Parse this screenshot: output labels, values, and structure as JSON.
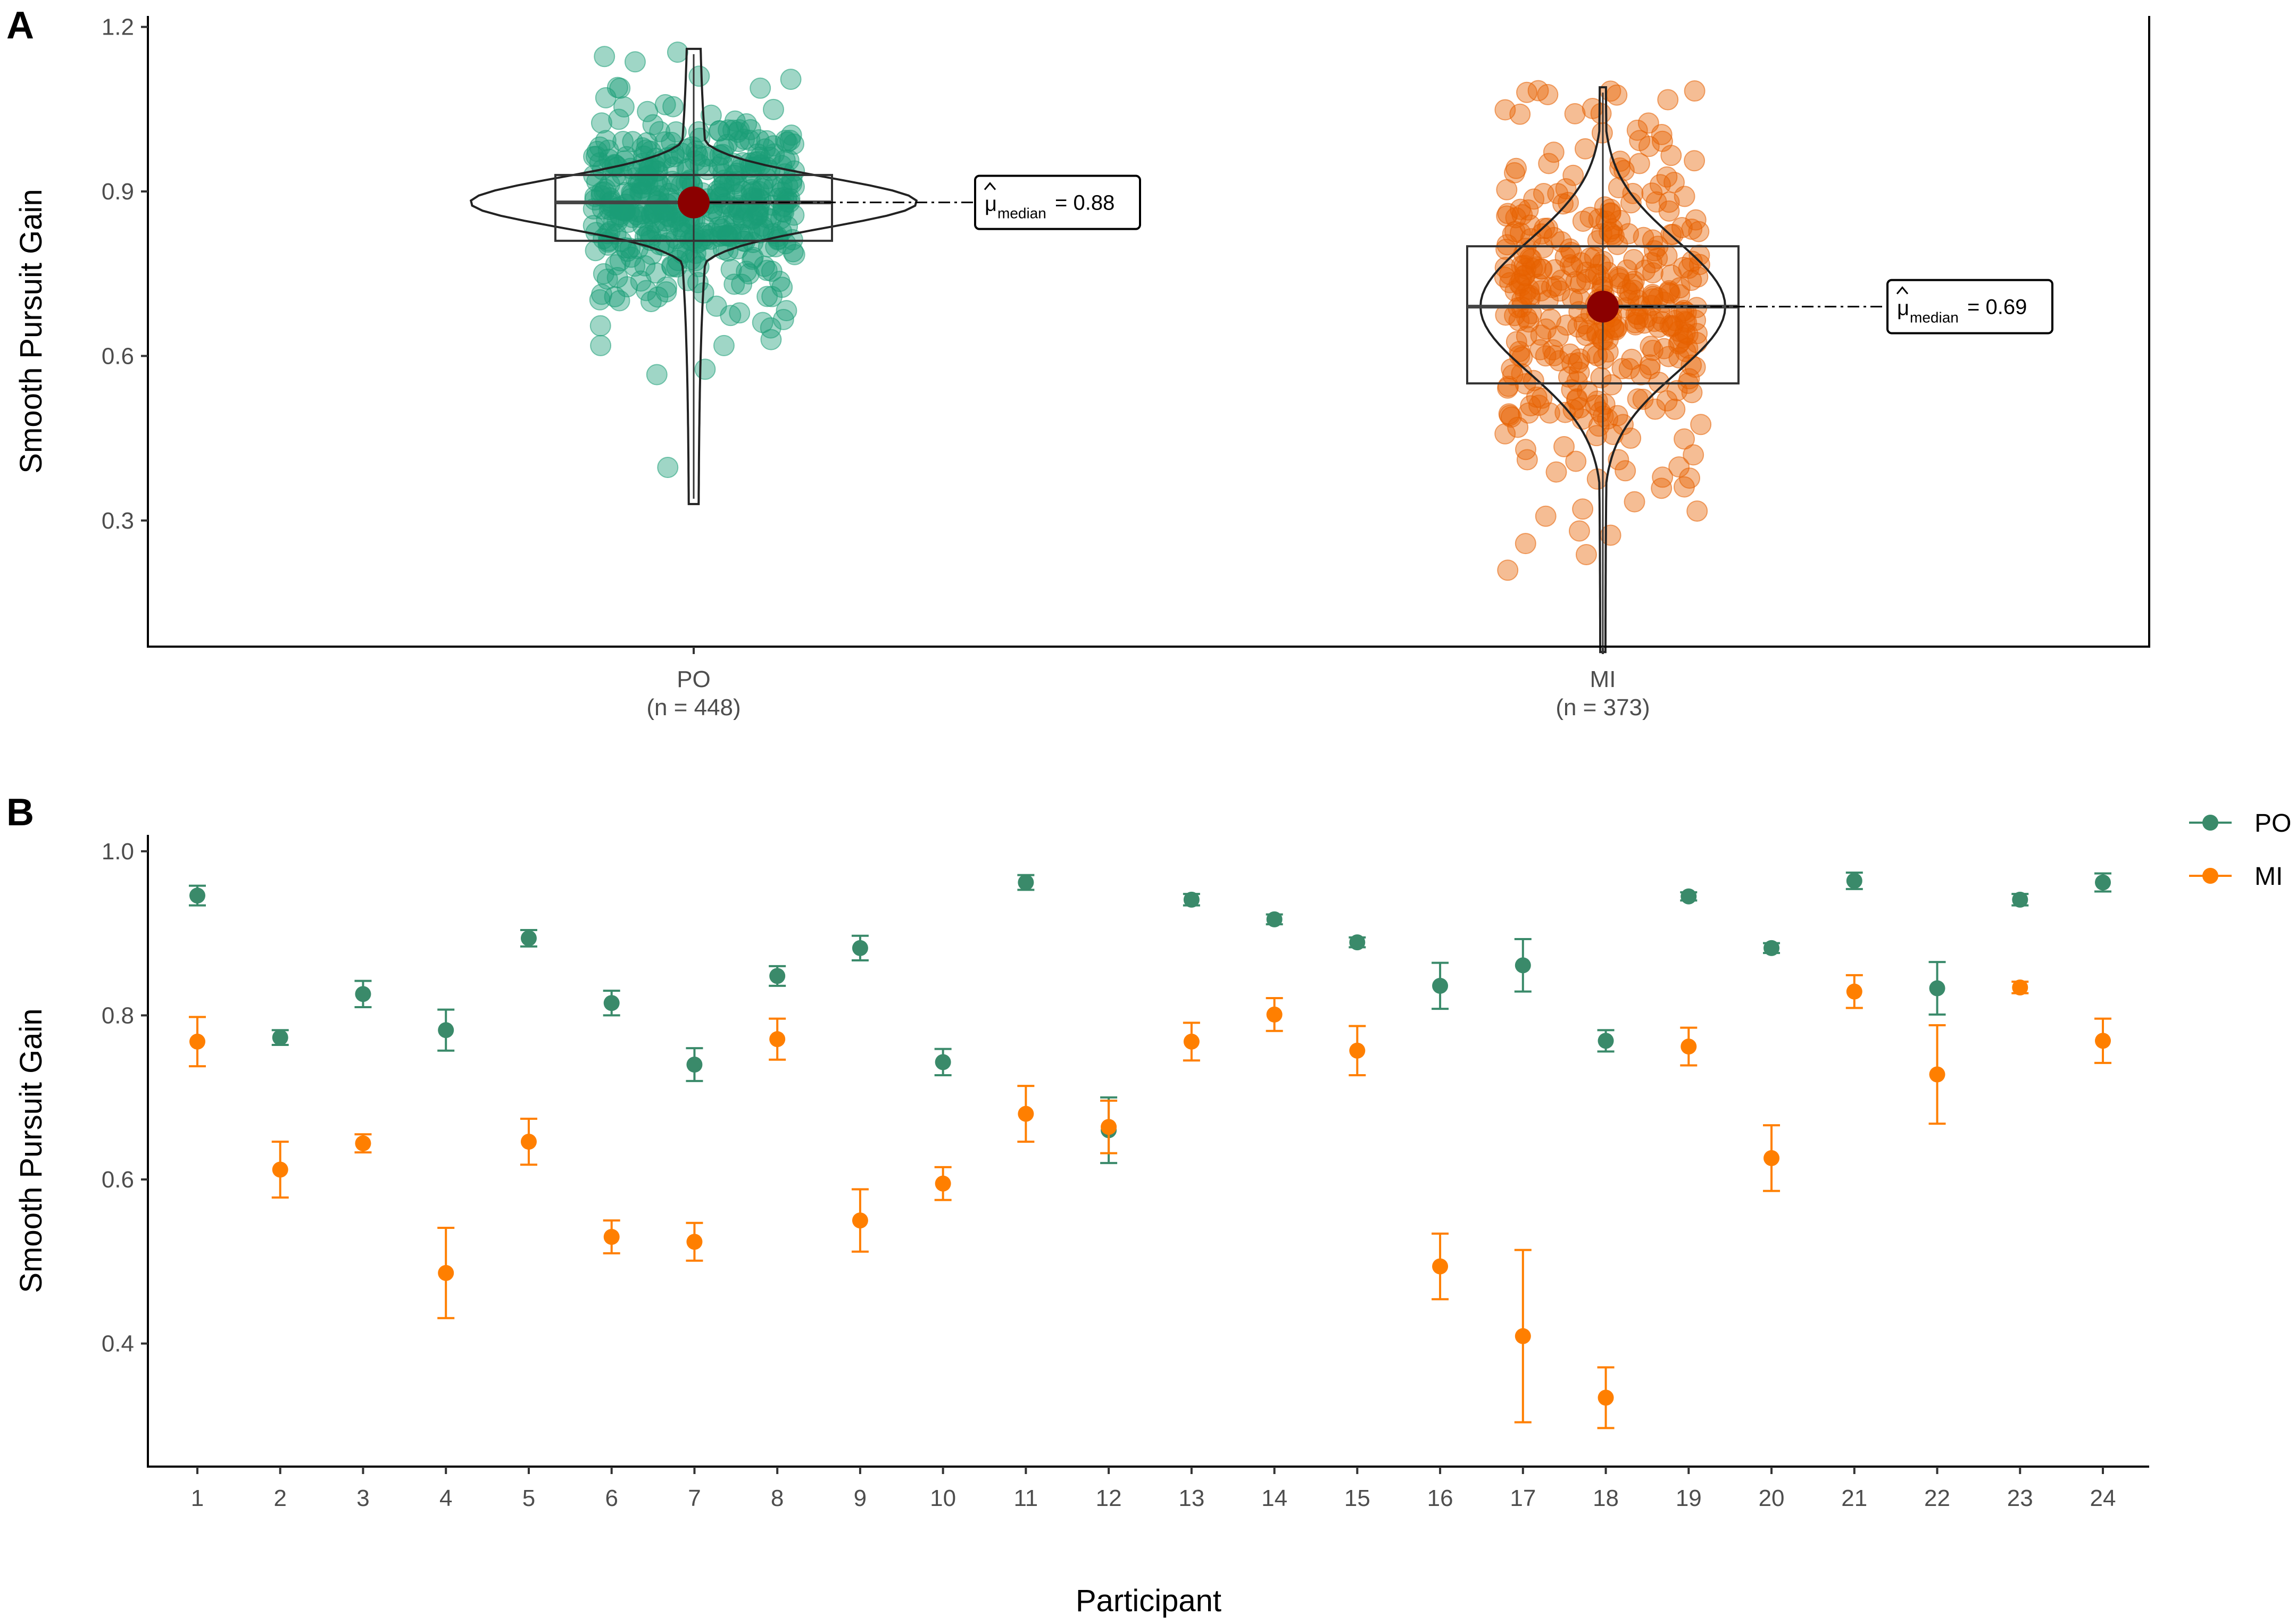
{
  "chart_data": [
    {
      "panel": "A",
      "type": "violin",
      "ylabel": "Smooth Pursuit Gain",
      "ylim": [
        0.07,
        1.22
      ],
      "yticks": [
        0.3,
        0.6,
        0.9,
        1.2
      ],
      "ytick_labels": [
        "0.3",
        "0.6",
        "0.9",
        "1.2"
      ],
      "median_symbol": "μ",
      "median_subscript": "median",
      "groups": [
        {
          "name": "PO",
          "n_label": "(n = 448)",
          "color": "#1b9e77",
          "median": 0.88,
          "median_label": "= 0.88",
          "q1": 0.81,
          "q3": 0.93,
          "min": 0.33,
          "max": 1.16
        },
        {
          "name": "MI",
          "n_label": "(n = 373)",
          "color": "#e66101",
          "median": 0.69,
          "median_label": "= 0.69",
          "q1": 0.55,
          "q3": 0.8,
          "min": 0.06,
          "max": 1.09
        }
      ]
    },
    {
      "panel": "B",
      "type": "scatter",
      "xlabel": "Participant",
      "ylabel": "Smooth Pursuit Gain",
      "ylim": [
        0.25,
        1.02
      ],
      "yticks": [
        0.4,
        0.6,
        0.8,
        1.0
      ],
      "ytick_labels": [
        "0.4",
        "0.6",
        "0.8",
        "1.0"
      ],
      "categories": [
        "1",
        "2",
        "3",
        "4",
        "5",
        "6",
        "7",
        "8",
        "9",
        "10",
        "11",
        "12",
        "13",
        "14",
        "15",
        "16",
        "17",
        "18",
        "19",
        "20",
        "21",
        "22",
        "23",
        "24"
      ],
      "series": [
        {
          "name": "PO",
          "color": "#3a8a6a",
          "values": [
            0.946,
            0.773,
            0.826,
            0.782,
            0.894,
            0.815,
            0.74,
            0.848,
            0.882,
            0.743,
            0.962,
            0.66,
            0.941,
            0.917,
            0.889,
            0.836,
            0.861,
            0.769,
            0.945,
            0.882,
            0.964,
            0.833,
            0.941,
            0.962
          ],
          "err": [
            0.012,
            0.009,
            0.016,
            0.025,
            0.01,
            0.015,
            0.02,
            0.012,
            0.015,
            0.016,
            0.009,
            0.04,
            0.007,
            0.006,
            0.006,
            0.028,
            0.032,
            0.013,
            0.005,
            0.006,
            0.01,
            0.032,
            0.007,
            0.011
          ]
        },
        {
          "name": "MI",
          "color": "#ff7f00",
          "values": [
            0.768,
            0.612,
            0.644,
            0.486,
            0.646,
            0.53,
            0.524,
            0.771,
            0.55,
            0.595,
            0.68,
            0.664,
            0.768,
            0.801,
            0.757,
            0.494,
            0.409,
            0.334,
            0.762,
            0.626,
            0.829,
            0.728,
            0.834,
            0.769
          ],
          "err": [
            0.03,
            0.034,
            0.011,
            0.055,
            0.028,
            0.02,
            0.023,
            0.025,
            0.038,
            0.02,
            0.034,
            0.032,
            0.023,
            0.02,
            0.03,
            0.04,
            0.105,
            0.037,
            0.023,
            0.04,
            0.02,
            0.06,
            0.007,
            0.027
          ]
        }
      ],
      "legend_position": "top-right"
    }
  ]
}
